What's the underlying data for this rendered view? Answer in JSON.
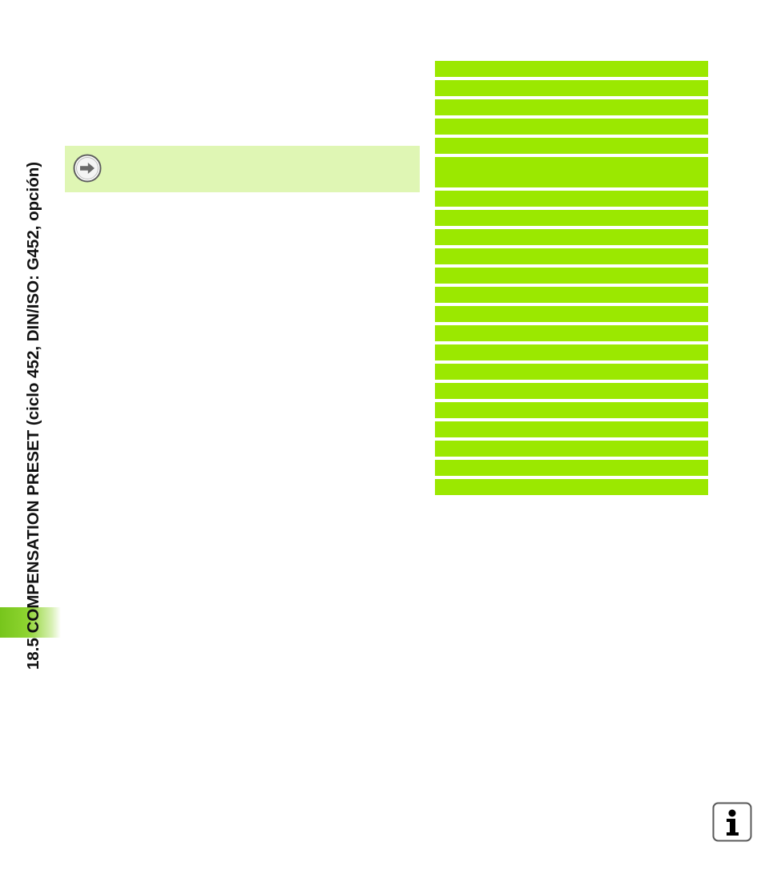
{
  "page": {
    "side_title": "18.5 COMPENSATION PRESET (ciclo 452, DIN/ISO: G452, opción)"
  },
  "note": {
    "icon": "arrow-right-circle-icon"
  },
  "table": {
    "row_count": 22,
    "row_color": "#9be800"
  },
  "footer": {
    "icon": "info-icon"
  },
  "colors": {
    "accent_green": "#9be800",
    "note_background": "#dff6b4",
    "side_tab_green": "#8ed430"
  }
}
